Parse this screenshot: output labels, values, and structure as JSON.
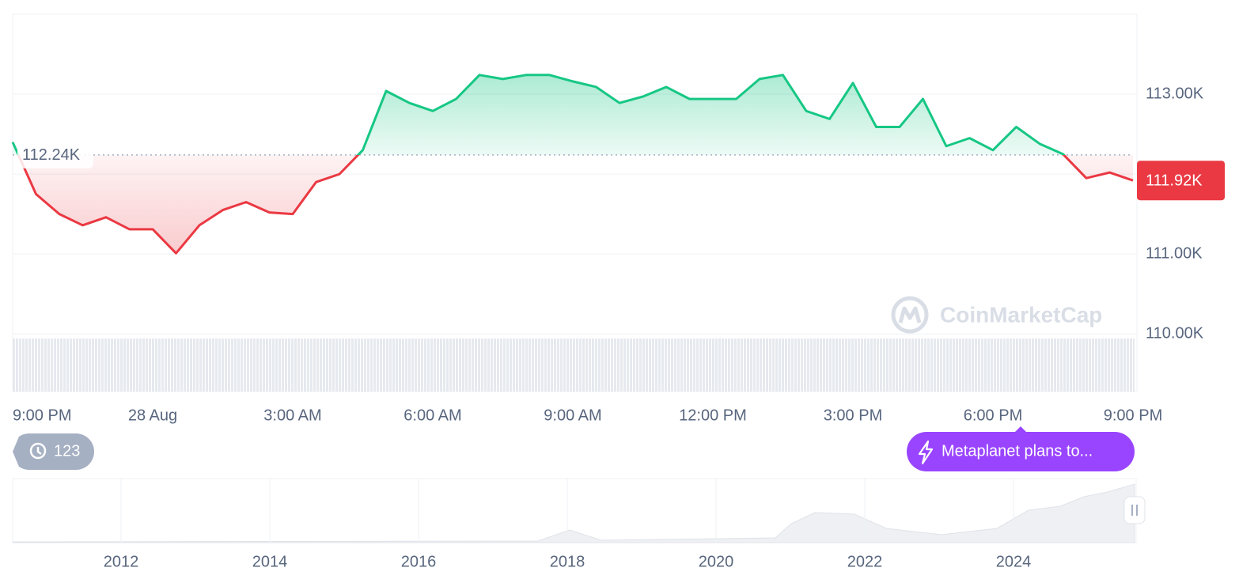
{
  "chart_data": {
    "type": "line",
    "x": [
      0,
      0.5,
      1,
      1.5,
      2,
      2.5,
      3,
      3.5,
      4,
      4.5,
      5,
      5.5,
      6,
      6.5,
      7,
      7.5,
      8,
      8.5,
      9,
      9.5,
      10,
      10.5,
      11,
      11.5,
      12,
      12.5,
      13,
      13.5,
      14,
      14.5,
      15,
      15.5,
      16,
      16.5,
      17,
      17.5,
      18,
      18.5,
      19,
      19.5,
      20,
      20.5,
      21,
      21.5,
      22,
      22.5,
      23,
      23.5,
      24
    ],
    "series": [
      {
        "values": [
          112400,
          111750,
          111500,
          111360,
          111460,
          111310,
          111310,
          111010,
          111360,
          111550,
          111650,
          111520,
          111500,
          111900,
          112000,
          112300,
          113040,
          112890,
          112790,
          112940,
          113240,
          113190,
          113240,
          113240,
          113160,
          113090,
          112890,
          112970,
          113090,
          112940,
          112940,
          112940,
          113190,
          113240,
          112790,
          112690,
          113140,
          112590,
          112590,
          112940,
          112350,
          112450,
          112300,
          112590,
          112380,
          112250,
          111950,
          112020,
          111920
        ]
      }
    ],
    "colors": {
      "above": "#16c784",
      "below": "#ea3943"
    },
    "xlim": [
      0,
      24
    ],
    "xticks": [
      {
        "value": 0,
        "label": "9:00 PM"
      },
      {
        "value": 3,
        "label": "28 Aug"
      },
      {
        "value": 6,
        "label": "3:00 AM"
      },
      {
        "value": 9,
        "label": "6:00 AM"
      },
      {
        "value": 12,
        "label": "9:00 AM"
      },
      {
        "value": 15,
        "label": "12:00 PM"
      },
      {
        "value": 18,
        "label": "3:00 PM"
      },
      {
        "value": 21,
        "label": "6:00 PM"
      },
      {
        "value": 24,
        "label": "9:00 PM"
      }
    ],
    "ylim": [
      109280,
      114000
    ],
    "yticks": [
      {
        "value": 113000,
        "label": "113.00K"
      },
      {
        "value": 111000,
        "label": "111.00K"
      },
      {
        "value": 110000,
        "label": "110.00K"
      }
    ],
    "ygrid": [
      110000,
      111000,
      112000,
      113000
    ],
    "baseline": {
      "value": 112240,
      "label": "112.24K"
    },
    "last_price": {
      "value": 111920,
      "label": "111.92K"
    },
    "watermark": "CoinMarketCap"
  },
  "history_badge": {
    "count": 123
  },
  "news_pill": {
    "text": "Metaplanet plans to..."
  },
  "navigator": {
    "xticks": [
      "2012",
      "2014",
      "2016",
      "2018",
      "2020",
      "2022",
      "2024"
    ]
  }
}
